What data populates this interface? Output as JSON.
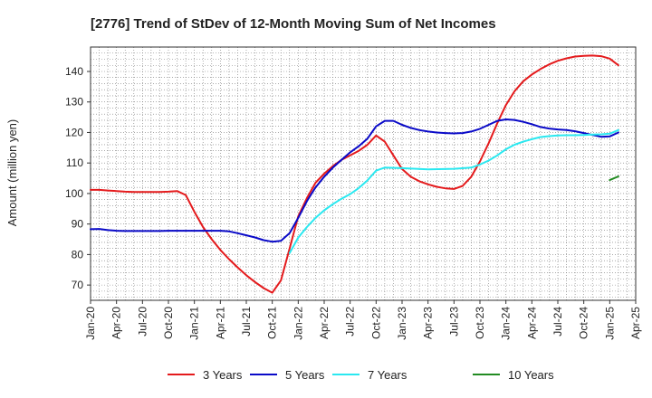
{
  "chart_data": {
    "type": "line",
    "title": "[2776]  Trend of StDev of 12-Month Moving Sum of Net Incomes",
    "xlabel": "",
    "ylabel": "Amount (million yen)",
    "ylim": [
      65,
      148
    ],
    "yticks": [
      70,
      80,
      90,
      100,
      110,
      120,
      130,
      140
    ],
    "xlim": [
      "2020-01",
      "2025-04"
    ],
    "xticks": [
      "Jan-20",
      "Apr-20",
      "Jul-20",
      "Oct-20",
      "Jan-21",
      "Apr-21",
      "Jul-21",
      "Oct-21",
      "Jan-22",
      "Apr-22",
      "Jul-22",
      "Oct-22",
      "Jan-23",
      "Apr-23",
      "Jul-23",
      "Oct-23",
      "Jan-24",
      "Apr-24",
      "Jul-24",
      "Oct-24",
      "Jan-25",
      "Apr-25"
    ],
    "grid": true,
    "legend": "bottom",
    "series": [
      {
        "name": "3 Years",
        "color": "#e41a1c",
        "points": [
          [
            "2020-01",
            101.2
          ],
          [
            "2020-02",
            101.2
          ],
          [
            "2020-03",
            101.0
          ],
          [
            "2020-04",
            100.8
          ],
          [
            "2020-05",
            100.6
          ],
          [
            "2020-06",
            100.5
          ],
          [
            "2020-07",
            100.5
          ],
          [
            "2020-08",
            100.5
          ],
          [
            "2020-09",
            100.5
          ],
          [
            "2020-10",
            100.6
          ],
          [
            "2020-11",
            100.8
          ],
          [
            "2020-12",
            99.5
          ],
          [
            "2021-01",
            94.0
          ],
          [
            "2021-02",
            89.0
          ],
          [
            "2021-03",
            85.0
          ],
          [
            "2021-04",
            81.5
          ],
          [
            "2021-05",
            78.5
          ],
          [
            "2021-06",
            75.8
          ],
          [
            "2021-07",
            73.2
          ],
          [
            "2021-08",
            71.0
          ],
          [
            "2021-09",
            69.0
          ],
          [
            "2021-10",
            67.5
          ],
          [
            "2021-11",
            71.5
          ],
          [
            "2021-12",
            82.0
          ],
          [
            "2022-01",
            92.5
          ],
          [
            "2022-02",
            98.5
          ],
          [
            "2022-03",
            103.5
          ],
          [
            "2022-04",
            106.5
          ],
          [
            "2022-05",
            109.0
          ],
          [
            "2022-06",
            111.0
          ],
          [
            "2022-07",
            112.5
          ],
          [
            "2022-08",
            114.0
          ],
          [
            "2022-09",
            116.0
          ],
          [
            "2022-10",
            119.0
          ],
          [
            "2022-11",
            117.0
          ],
          [
            "2022-12",
            112.5
          ],
          [
            "2023-01",
            108.0
          ],
          [
            "2023-02",
            105.5
          ],
          [
            "2023-03",
            104.0
          ],
          [
            "2023-04",
            103.0
          ],
          [
            "2023-05",
            102.2
          ],
          [
            "2023-06",
            101.7
          ],
          [
            "2023-07",
            101.5
          ],
          [
            "2023-08",
            102.5
          ],
          [
            "2023-09",
            105.5
          ],
          [
            "2023-10",
            110.5
          ],
          [
            "2023-11",
            116.5
          ],
          [
            "2023-12",
            123.0
          ],
          [
            "2024-01",
            129.0
          ],
          [
            "2024-02",
            133.5
          ],
          [
            "2024-03",
            136.8
          ],
          [
            "2024-04",
            139.0
          ],
          [
            "2024-05",
            140.8
          ],
          [
            "2024-06",
            142.3
          ],
          [
            "2024-07",
            143.5
          ],
          [
            "2024-08",
            144.3
          ],
          [
            "2024-09",
            144.9
          ],
          [
            "2024-10",
            145.1
          ],
          [
            "2024-11",
            145.2
          ],
          [
            "2024-12",
            145.0
          ],
          [
            "2025-01",
            144.2
          ],
          [
            "2025-02",
            142.0
          ]
        ]
      },
      {
        "name": "5 Years",
        "color": "#0a0ac8",
        "points": [
          [
            "2020-01",
            88.3
          ],
          [
            "2020-02",
            88.4
          ],
          [
            "2020-03",
            88.0
          ],
          [
            "2020-04",
            87.8
          ],
          [
            "2020-05",
            87.7
          ],
          [
            "2020-06",
            87.7
          ],
          [
            "2020-07",
            87.7
          ],
          [
            "2020-08",
            87.7
          ],
          [
            "2020-09",
            87.7
          ],
          [
            "2020-10",
            87.8
          ],
          [
            "2020-11",
            87.8
          ],
          [
            "2020-12",
            87.8
          ],
          [
            "2021-01",
            87.8
          ],
          [
            "2021-02",
            87.8
          ],
          [
            "2021-03",
            87.8
          ],
          [
            "2021-04",
            87.8
          ],
          [
            "2021-05",
            87.6
          ],
          [
            "2021-06",
            87.0
          ],
          [
            "2021-07",
            86.3
          ],
          [
            "2021-08",
            85.6
          ],
          [
            "2021-09",
            84.7
          ],
          [
            "2021-10",
            84.2
          ],
          [
            "2021-11",
            84.5
          ],
          [
            "2021-12",
            87.0
          ],
          [
            "2022-01",
            92.0
          ],
          [
            "2022-02",
            97.5
          ],
          [
            "2022-03",
            102.0
          ],
          [
            "2022-04",
            105.5
          ],
          [
            "2022-05",
            108.5
          ],
          [
            "2022-06",
            111.0
          ],
          [
            "2022-07",
            113.5
          ],
          [
            "2022-08",
            115.5
          ],
          [
            "2022-09",
            118.0
          ],
          [
            "2022-10",
            122.0
          ],
          [
            "2022-11",
            123.8
          ],
          [
            "2022-12",
            123.8
          ],
          [
            "2023-01",
            122.5
          ],
          [
            "2023-02",
            121.5
          ],
          [
            "2023-03",
            120.8
          ],
          [
            "2023-04",
            120.3
          ],
          [
            "2023-05",
            120.0
          ],
          [
            "2023-06",
            119.8
          ],
          [
            "2023-07",
            119.7
          ],
          [
            "2023-08",
            119.8
          ],
          [
            "2023-09",
            120.3
          ],
          [
            "2023-10",
            121.2
          ],
          [
            "2023-11",
            122.5
          ],
          [
            "2023-12",
            123.8
          ],
          [
            "2024-01",
            124.3
          ],
          [
            "2024-02",
            124.1
          ],
          [
            "2024-03",
            123.5
          ],
          [
            "2024-04",
            122.7
          ],
          [
            "2024-05",
            121.8
          ],
          [
            "2024-06",
            121.3
          ],
          [
            "2024-07",
            121.0
          ],
          [
            "2024-08",
            120.8
          ],
          [
            "2024-09",
            120.4
          ],
          [
            "2024-10",
            119.8
          ],
          [
            "2024-11",
            119.2
          ],
          [
            "2024-12",
            118.6
          ],
          [
            "2025-01",
            118.7
          ],
          [
            "2025-02",
            120.0
          ]
        ]
      },
      {
        "name": "7 Years",
        "color": "#2ae8f0",
        "points": [
          [
            "2021-12",
            80.5
          ],
          [
            "2022-01",
            85.5
          ],
          [
            "2022-02",
            89.0
          ],
          [
            "2022-03",
            92.0
          ],
          [
            "2022-04",
            94.5
          ],
          [
            "2022-05",
            96.5
          ],
          [
            "2022-06",
            98.3
          ],
          [
            "2022-07",
            99.8
          ],
          [
            "2022-08",
            101.8
          ],
          [
            "2022-09",
            104.3
          ],
          [
            "2022-10",
            107.5
          ],
          [
            "2022-11",
            108.5
          ],
          [
            "2023-01",
            108.3
          ],
          [
            "2023-04",
            107.9
          ],
          [
            "2023-07",
            108.1
          ],
          [
            "2023-09",
            108.5
          ],
          [
            "2023-10",
            109.5
          ],
          [
            "2023-11",
            110.8
          ],
          [
            "2023-12",
            112.5
          ],
          [
            "2024-01",
            114.5
          ],
          [
            "2024-02",
            116.0
          ],
          [
            "2024-03",
            117.0
          ],
          [
            "2024-04",
            117.8
          ],
          [
            "2024-05",
            118.5
          ],
          [
            "2024-06",
            118.8
          ],
          [
            "2024-07",
            119.0
          ],
          [
            "2024-08",
            119.1
          ],
          [
            "2024-09",
            119.1
          ],
          [
            "2024-10",
            119.2
          ],
          [
            "2024-11",
            119.3
          ],
          [
            "2024-12",
            119.4
          ],
          [
            "2025-01",
            119.6
          ],
          [
            "2025-02",
            120.8
          ]
        ]
      },
      {
        "name": "10 Years",
        "color": "#228b22",
        "points": [
          [
            "2025-01",
            104.4
          ],
          [
            "2025-02",
            105.6
          ]
        ]
      }
    ]
  }
}
